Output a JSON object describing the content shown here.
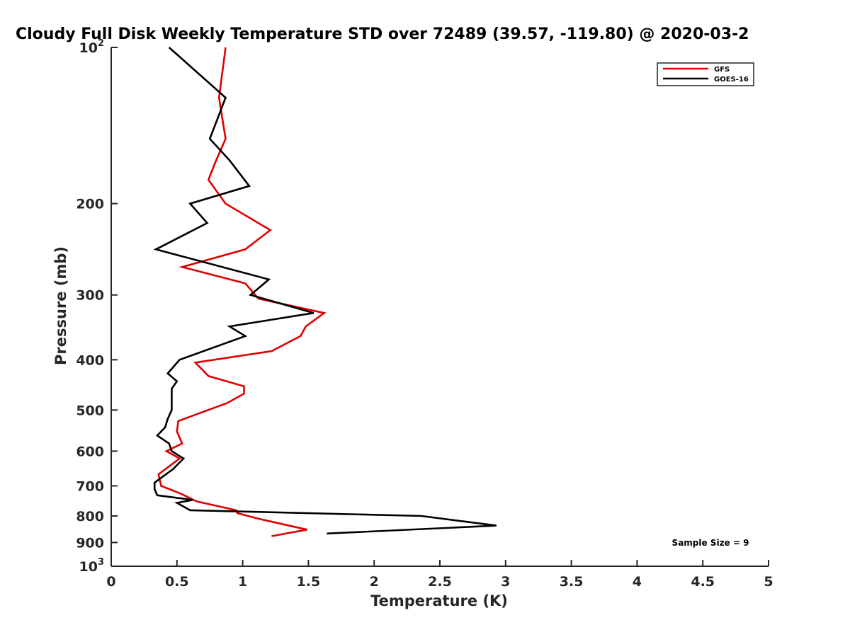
{
  "chart_data": {
    "type": "line",
    "title": "Cloudy Full Disk Weekly Temperature STD over 72489 (39.57, -119.80) @ 2020-03-2",
    "xlabel": "Temperature (K)",
    "ylabel": "Pressure (mb)",
    "xlim": [
      0,
      5
    ],
    "ylim": [
      100,
      1000
    ],
    "y_scale": "log",
    "y_reversed": true,
    "grid": false,
    "legend_position": "top-right",
    "x_ticks": [
      0,
      0.5,
      1,
      1.5,
      2,
      2.5,
      3,
      3.5,
      4,
      4.5,
      5
    ],
    "x_tick_labels": [
      "0",
      "0.5",
      "1",
      "1.5",
      "2",
      "2.5",
      "3",
      "3.5",
      "4",
      "4.5",
      "5"
    ],
    "y_ticks": [
      {
        "value": 100,
        "base": "10",
        "exp": "2"
      },
      {
        "value": 200,
        "label": "200"
      },
      {
        "value": 300,
        "label": "300"
      },
      {
        "value": 400,
        "label": "400"
      },
      {
        "value": 500,
        "label": "500"
      },
      {
        "value": 600,
        "label": "600"
      },
      {
        "value": 700,
        "label": "700"
      },
      {
        "value": 800,
        "label": "800"
      },
      {
        "value": 900,
        "label": "900"
      },
      {
        "value": 1000,
        "base": "10",
        "exp": "3"
      }
    ],
    "series": [
      {
        "name": "GFS",
        "color": "#e00000",
        "points": [
          [
            0.87,
            100
          ],
          [
            0.82,
            125
          ],
          [
            0.87,
            150
          ],
          [
            0.79,
            167
          ],
          [
            0.74,
            180
          ],
          [
            0.87,
            200
          ],
          [
            1.21,
            225
          ],
          [
            1.02,
            245
          ],
          [
            0.54,
            265
          ],
          [
            1.02,
            285
          ],
          [
            1.12,
            305
          ],
          [
            1.62,
            325
          ],
          [
            1.48,
            345
          ],
          [
            1.44,
            360
          ],
          [
            1.22,
            385
          ],
          [
            0.64,
            405
          ],
          [
            0.74,
            430
          ],
          [
            1.01,
            450
          ],
          [
            1.01,
            465
          ],
          [
            0.88,
            485
          ],
          [
            0.51,
            525
          ],
          [
            0.5,
            550
          ],
          [
            0.54,
            580
          ],
          [
            0.42,
            600
          ],
          [
            0.52,
            620
          ],
          [
            0.36,
            665
          ],
          [
            0.38,
            700
          ],
          [
            0.53,
            725
          ],
          [
            0.65,
            750
          ],
          [
            0.95,
            780
          ],
          [
            0.96,
            790
          ],
          [
            1.12,
            810
          ],
          [
            1.49,
            850
          ],
          [
            1.22,
            875
          ]
        ]
      },
      {
        "name": "GOES-16",
        "color": "#000000",
        "points": [
          [
            0.44,
            100
          ],
          [
            0.87,
            125
          ],
          [
            0.75,
            150
          ],
          [
            0.9,
            165
          ],
          [
            1.05,
            185
          ],
          [
            0.6,
            200
          ],
          [
            0.73,
            218
          ],
          [
            0.34,
            245
          ],
          [
            1.2,
            280
          ],
          [
            1.06,
            300
          ],
          [
            1.54,
            325
          ],
          [
            0.9,
            345
          ],
          [
            1.02,
            360
          ],
          [
            0.52,
            400
          ],
          [
            0.43,
            425
          ],
          [
            0.5,
            440
          ],
          [
            0.46,
            455
          ],
          [
            0.46,
            480
          ],
          [
            0.46,
            500
          ],
          [
            0.43,
            520
          ],
          [
            0.41,
            540
          ],
          [
            0.35,
            560
          ],
          [
            0.44,
            580
          ],
          [
            0.46,
            600
          ],
          [
            0.55,
            620
          ],
          [
            0.47,
            650
          ],
          [
            0.33,
            690
          ],
          [
            0.33,
            710
          ],
          [
            0.35,
            730
          ],
          [
            0.62,
            745
          ],
          [
            0.5,
            755
          ],
          [
            0.6,
            780
          ],
          [
            2.36,
            800
          ],
          [
            2.93,
            835
          ],
          [
            1.64,
            865
          ]
        ]
      }
    ],
    "annotations": [
      "Sample Size = 9"
    ]
  }
}
